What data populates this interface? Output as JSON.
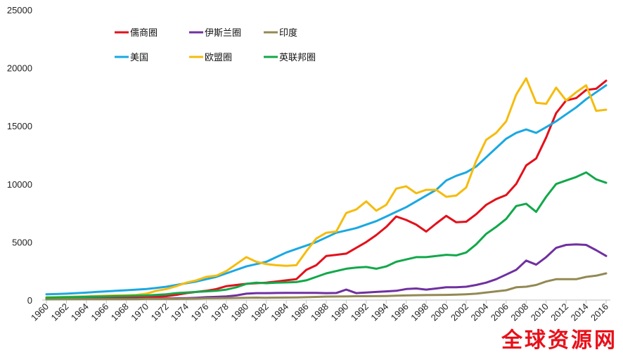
{
  "chart_data": {
    "type": "line",
    "title": "",
    "xlabel": "",
    "ylabel": "",
    "ylim": [
      0,
      25000
    ],
    "xlim": [
      1960,
      2016
    ],
    "yticks": [
      0,
      5000,
      10000,
      15000,
      20000,
      25000
    ],
    "yticklabels": [
      "0",
      "5000",
      "10000",
      "15000",
      "20000",
      "25000"
    ],
    "xticks": [
      1960,
      1962,
      1964,
      1966,
      1968,
      1970,
      1972,
      1974,
      1976,
      1978,
      1980,
      1982,
      1984,
      1986,
      1988,
      1990,
      1992,
      1994,
      1996,
      1998,
      2000,
      2002,
      2004,
      2006,
      2008,
      2010,
      2012,
      2014,
      2016
    ],
    "xticklabels": [
      "1960",
      "1962",
      "1964",
      "1966",
      "1968",
      "1970",
      "1972",
      "1974",
      "1976",
      "1978",
      "1980",
      "1982",
      "1984",
      "1986",
      "1988",
      "1990",
      "1992",
      "1994",
      "1996",
      "1998",
      "2000",
      "2002",
      "2004",
      "2006",
      "2008",
      "2010",
      "2012",
      "2014",
      "2016"
    ],
    "grid": false,
    "legend_position": "top-left",
    "x": [
      1960,
      1961,
      1962,
      1963,
      1964,
      1965,
      1966,
      1967,
      1968,
      1969,
      1970,
      1971,
      1972,
      1973,
      1974,
      1975,
      1976,
      1977,
      1978,
      1979,
      1980,
      1981,
      1982,
      1983,
      1984,
      1985,
      1986,
      1987,
      1988,
      1989,
      1990,
      1991,
      1992,
      1993,
      1994,
      1995,
      1996,
      1997,
      1998,
      1999,
      2000,
      2001,
      2002,
      2003,
      2004,
      2005,
      2006,
      2007,
      2008,
      2009,
      2010,
      2011,
      2012,
      2013,
      2014,
      2015,
      2016
    ],
    "series": [
      {
        "name": "儒商圈",
        "color": "#e3101a",
        "values": [
          150,
          155,
          160,
          170,
          180,
          190,
          200,
          210,
          220,
          230,
          250,
          280,
          330,
          450,
          600,
          700,
          800,
          950,
          1200,
          1300,
          1400,
          1450,
          1500,
          1600,
          1700,
          1800,
          2600,
          3000,
          3800,
          3900,
          4000,
          4500,
          5000,
          5600,
          6300,
          7200,
          6900,
          6500,
          5900,
          6600,
          7250,
          6700,
          6750,
          7400,
          8200,
          8700,
          9050,
          10000,
          11600,
          12200,
          14000,
          16100,
          17200,
          17400,
          18100,
          18200,
          18900
        ]
      },
      {
        "name": "伊斯兰圈",
        "color": "#7030a0",
        "values": [
          80,
          85,
          90,
          95,
          100,
          105,
          110,
          115,
          120,
          125,
          130,
          135,
          140,
          150,
          170,
          200,
          250,
          280,
          320,
          400,
          550,
          600,
          600,
          610,
          620,
          620,
          620,
          620,
          600,
          610,
          900,
          600,
          650,
          700,
          750,
          800,
          950,
          1000,
          900,
          1000,
          1100,
          1100,
          1150,
          1300,
          1500,
          1800,
          2200,
          2600,
          3400,
          3050,
          3700,
          4500,
          4750,
          4800,
          4750,
          4300,
          3800
        ]
      },
      {
        "name": "印度",
        "color": "#938953",
        "values": [
          80,
          80,
          80,
          80,
          80,
          80,
          80,
          80,
          80,
          80,
          100,
          100,
          100,
          110,
          120,
          130,
          150,
          160,
          170,
          180,
          200,
          210,
          200,
          210,
          220,
          230,
          250,
          270,
          300,
          310,
          320,
          330,
          330,
          340,
          350,
          380,
          400,
          420,
          430,
          440,
          450,
          470,
          500,
          550,
          650,
          750,
          850,
          1100,
          1150,
          1300,
          1600,
          1800,
          1800,
          1800,
          2000,
          2100,
          2300
        ]
      },
      {
        "name": "美国",
        "color": "#1aa8e2",
        "values": [
          500,
          520,
          550,
          600,
          640,
          700,
          750,
          800,
          850,
          900,
          950,
          1050,
          1150,
          1300,
          1450,
          1600,
          1800,
          2000,
          2300,
          2600,
          2900,
          3100,
          3300,
          3700,
          4100,
          4400,
          4700,
          5000,
          5400,
          5800,
          6000,
          6200,
          6500,
          6800,
          7200,
          7600,
          8000,
          8500,
          9000,
          9500,
          10300,
          10700,
          11000,
          11500,
          12300,
          13100,
          13900,
          14400,
          14700,
          14400,
          14900,
          15400,
          16000,
          16600,
          17300,
          17900,
          18500
        ]
      },
      {
        "name": "欧盟圈",
        "color": "#f5bc0e",
        "values": [
          250,
          260,
          280,
          300,
          320,
          350,
          380,
          400,
          420,
          450,
          550,
          800,
          950,
          1200,
          1500,
          1700,
          2000,
          2100,
          2500,
          3100,
          3700,
          3300,
          3100,
          3000,
          2950,
          3000,
          4200,
          5300,
          5800,
          5900,
          7500,
          7800,
          8500,
          7700,
          8200,
          9600,
          9800,
          9200,
          9500,
          9500,
          8900,
          9000,
          9700,
          12000,
          13800,
          14400,
          15400,
          17700,
          19100,
          17000,
          16900,
          18300,
          17200,
          17900,
          18500,
          16300,
          16400
        ]
      },
      {
        "name": "英联邦圈",
        "color": "#12a84a",
        "values": [
          200,
          220,
          240,
          260,
          280,
          300,
          320,
          340,
          360,
          380,
          400,
          450,
          500,
          600,
          650,
          700,
          750,
          800,
          900,
          1100,
          1400,
          1500,
          1450,
          1500,
          1520,
          1550,
          1700,
          2000,
          2300,
          2500,
          2700,
          2800,
          2850,
          2700,
          2900,
          3300,
          3500,
          3700,
          3700,
          3800,
          3900,
          3850,
          4100,
          4800,
          5700,
          6300,
          7000,
          8100,
          8300,
          7600,
          8900,
          10000,
          10300,
          10600,
          11000,
          10400,
          10100
        ]
      }
    ]
  },
  "watermark": "全球资源网"
}
